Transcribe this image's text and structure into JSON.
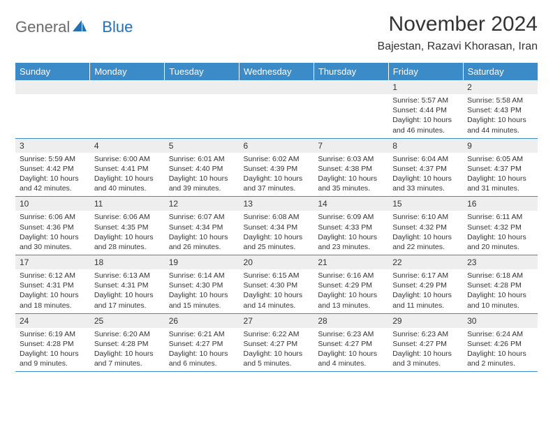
{
  "logo": {
    "part1": "General",
    "part2": "Blue",
    "color1": "#6a6a6a",
    "color2": "#2170b8"
  },
  "header": {
    "title": "November 2024",
    "location": "Bajestan, Razavi Khorasan, Iran"
  },
  "colors": {
    "header_bg": "#3b8bc9",
    "header_text": "#ffffff",
    "daynum_bg": "#eeeeee",
    "border": "#3b8bc9",
    "text": "#333333"
  },
  "weekdays": [
    "Sunday",
    "Monday",
    "Tuesday",
    "Wednesday",
    "Thursday",
    "Friday",
    "Saturday"
  ],
  "weeks": [
    [
      null,
      null,
      null,
      null,
      null,
      {
        "n": "1",
        "sr": "Sunrise: 5:57 AM",
        "ss": "Sunset: 4:44 PM",
        "d1": "Daylight: 10 hours",
        "d2": "and 46 minutes."
      },
      {
        "n": "2",
        "sr": "Sunrise: 5:58 AM",
        "ss": "Sunset: 4:43 PM",
        "d1": "Daylight: 10 hours",
        "d2": "and 44 minutes."
      }
    ],
    [
      {
        "n": "3",
        "sr": "Sunrise: 5:59 AM",
        "ss": "Sunset: 4:42 PM",
        "d1": "Daylight: 10 hours",
        "d2": "and 42 minutes."
      },
      {
        "n": "4",
        "sr": "Sunrise: 6:00 AM",
        "ss": "Sunset: 4:41 PM",
        "d1": "Daylight: 10 hours",
        "d2": "and 40 minutes."
      },
      {
        "n": "5",
        "sr": "Sunrise: 6:01 AM",
        "ss": "Sunset: 4:40 PM",
        "d1": "Daylight: 10 hours",
        "d2": "and 39 minutes."
      },
      {
        "n": "6",
        "sr": "Sunrise: 6:02 AM",
        "ss": "Sunset: 4:39 PM",
        "d1": "Daylight: 10 hours",
        "d2": "and 37 minutes."
      },
      {
        "n": "7",
        "sr": "Sunrise: 6:03 AM",
        "ss": "Sunset: 4:38 PM",
        "d1": "Daylight: 10 hours",
        "d2": "and 35 minutes."
      },
      {
        "n": "8",
        "sr": "Sunrise: 6:04 AM",
        "ss": "Sunset: 4:37 PM",
        "d1": "Daylight: 10 hours",
        "d2": "and 33 minutes."
      },
      {
        "n": "9",
        "sr": "Sunrise: 6:05 AM",
        "ss": "Sunset: 4:37 PM",
        "d1": "Daylight: 10 hours",
        "d2": "and 31 minutes."
      }
    ],
    [
      {
        "n": "10",
        "sr": "Sunrise: 6:06 AM",
        "ss": "Sunset: 4:36 PM",
        "d1": "Daylight: 10 hours",
        "d2": "and 30 minutes."
      },
      {
        "n": "11",
        "sr": "Sunrise: 6:06 AM",
        "ss": "Sunset: 4:35 PM",
        "d1": "Daylight: 10 hours",
        "d2": "and 28 minutes."
      },
      {
        "n": "12",
        "sr": "Sunrise: 6:07 AM",
        "ss": "Sunset: 4:34 PM",
        "d1": "Daylight: 10 hours",
        "d2": "and 26 minutes."
      },
      {
        "n": "13",
        "sr": "Sunrise: 6:08 AM",
        "ss": "Sunset: 4:34 PM",
        "d1": "Daylight: 10 hours",
        "d2": "and 25 minutes."
      },
      {
        "n": "14",
        "sr": "Sunrise: 6:09 AM",
        "ss": "Sunset: 4:33 PM",
        "d1": "Daylight: 10 hours",
        "d2": "and 23 minutes."
      },
      {
        "n": "15",
        "sr": "Sunrise: 6:10 AM",
        "ss": "Sunset: 4:32 PM",
        "d1": "Daylight: 10 hours",
        "d2": "and 22 minutes."
      },
      {
        "n": "16",
        "sr": "Sunrise: 6:11 AM",
        "ss": "Sunset: 4:32 PM",
        "d1": "Daylight: 10 hours",
        "d2": "and 20 minutes."
      }
    ],
    [
      {
        "n": "17",
        "sr": "Sunrise: 6:12 AM",
        "ss": "Sunset: 4:31 PM",
        "d1": "Daylight: 10 hours",
        "d2": "and 18 minutes."
      },
      {
        "n": "18",
        "sr": "Sunrise: 6:13 AM",
        "ss": "Sunset: 4:31 PM",
        "d1": "Daylight: 10 hours",
        "d2": "and 17 minutes."
      },
      {
        "n": "19",
        "sr": "Sunrise: 6:14 AM",
        "ss": "Sunset: 4:30 PM",
        "d1": "Daylight: 10 hours",
        "d2": "and 15 minutes."
      },
      {
        "n": "20",
        "sr": "Sunrise: 6:15 AM",
        "ss": "Sunset: 4:30 PM",
        "d1": "Daylight: 10 hours",
        "d2": "and 14 minutes."
      },
      {
        "n": "21",
        "sr": "Sunrise: 6:16 AM",
        "ss": "Sunset: 4:29 PM",
        "d1": "Daylight: 10 hours",
        "d2": "and 13 minutes."
      },
      {
        "n": "22",
        "sr": "Sunrise: 6:17 AM",
        "ss": "Sunset: 4:29 PM",
        "d1": "Daylight: 10 hours",
        "d2": "and 11 minutes."
      },
      {
        "n": "23",
        "sr": "Sunrise: 6:18 AM",
        "ss": "Sunset: 4:28 PM",
        "d1": "Daylight: 10 hours",
        "d2": "and 10 minutes."
      }
    ],
    [
      {
        "n": "24",
        "sr": "Sunrise: 6:19 AM",
        "ss": "Sunset: 4:28 PM",
        "d1": "Daylight: 10 hours",
        "d2": "and 9 minutes."
      },
      {
        "n": "25",
        "sr": "Sunrise: 6:20 AM",
        "ss": "Sunset: 4:28 PM",
        "d1": "Daylight: 10 hours",
        "d2": "and 7 minutes."
      },
      {
        "n": "26",
        "sr": "Sunrise: 6:21 AM",
        "ss": "Sunset: 4:27 PM",
        "d1": "Daylight: 10 hours",
        "d2": "and 6 minutes."
      },
      {
        "n": "27",
        "sr": "Sunrise: 6:22 AM",
        "ss": "Sunset: 4:27 PM",
        "d1": "Daylight: 10 hours",
        "d2": "and 5 minutes."
      },
      {
        "n": "28",
        "sr": "Sunrise: 6:23 AM",
        "ss": "Sunset: 4:27 PM",
        "d1": "Daylight: 10 hours",
        "d2": "and 4 minutes."
      },
      {
        "n": "29",
        "sr": "Sunrise: 6:23 AM",
        "ss": "Sunset: 4:27 PM",
        "d1": "Daylight: 10 hours",
        "d2": "and 3 minutes."
      },
      {
        "n": "30",
        "sr": "Sunrise: 6:24 AM",
        "ss": "Sunset: 4:26 PM",
        "d1": "Daylight: 10 hours",
        "d2": "and 2 minutes."
      }
    ]
  ]
}
